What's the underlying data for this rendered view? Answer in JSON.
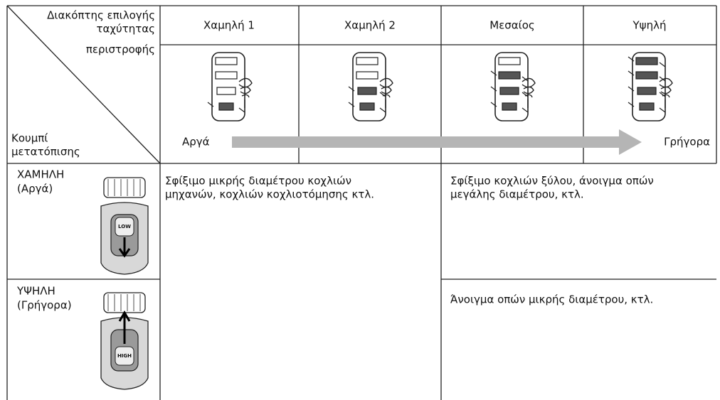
{
  "corner_header": {
    "top": [
      "Διακόπτης επιλογής",
      "ταχύτητας",
      "περιστροφής"
    ],
    "bottom": [
      "Κουμπί",
      "μετατόπισης"
    ]
  },
  "columns": [
    "Χαμηλή 1",
    "Χαμηλή 2",
    "Μεσαίος",
    "Υψηλή"
  ],
  "speed_arrow": {
    "start": "Αργά",
    "end": "Γρήγορα"
  },
  "rows": [
    {
      "label": [
        "ΧΑΜΗΛΗ",
        "(Αργά)"
      ],
      "button_label": "LOW"
    },
    {
      "label": [
        "ΥΨΗΛΗ",
        "(Γρήγορα)"
      ],
      "button_label": "HIGH"
    }
  ],
  "uses": {
    "low_speeds": [
      "Σφίξιμο μικρής διαμέτρου κοχλιών",
      "μηχανών, κοχλιών κοχλιοτόμησης κτλ."
    ],
    "high_speeds_low_gear": [
      "Σφίξιμο κοχλιών ξύλου, άνοιγμα οπών",
      "μεγάλης διαμέτρου, κτλ."
    ],
    "high_speeds_high_gear": [
      "Άνοιγμα οπών μικρής διαμέτρου, κτλ."
    ]
  }
}
